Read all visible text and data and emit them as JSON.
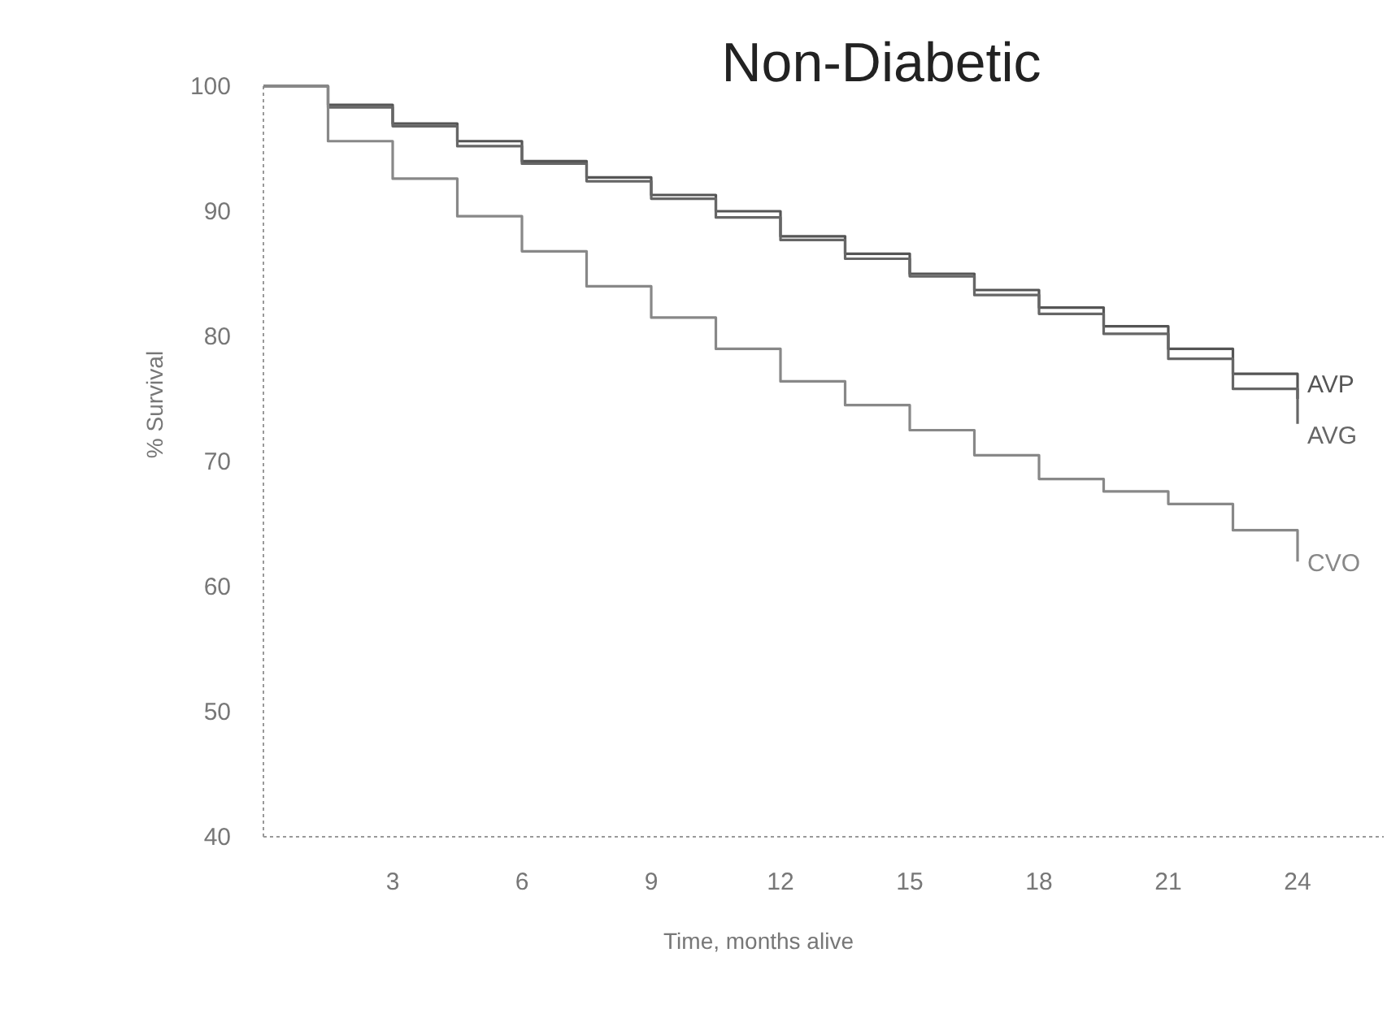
{
  "chart_data": {
    "type": "step",
    "title": "Non-Diabetic",
    "xlabel": "Time, months alive",
    "ylabel": "% Survival",
    "x": [
      0,
      1.5,
      3,
      4.5,
      6,
      7.5,
      9,
      10.5,
      12,
      13.5,
      15,
      16.5,
      18,
      19.5,
      21,
      22.5,
      24
    ],
    "series": [
      {
        "name": "AVP",
        "color": "#555555",
        "values": [
          100,
          98.5,
          97,
          95.6,
          94,
          92.7,
          91.3,
          90,
          88,
          86.6,
          85,
          83.7,
          82.3,
          80.8,
          79,
          77,
          75
        ]
      },
      {
        "name": "AVG",
        "color": "#666666",
        "values": [
          100,
          98.3,
          96.8,
          95.2,
          93.8,
          92.4,
          91,
          89.5,
          87.7,
          86.2,
          84.8,
          83.3,
          81.8,
          80.2,
          78.2,
          75.8,
          73
        ]
      },
      {
        "name": "CVO",
        "color": "#888888",
        "values": [
          100,
          95.6,
          92.6,
          89.6,
          86.8,
          84,
          81.5,
          79,
          76.4,
          74.5,
          72.5,
          70.5,
          68.6,
          67.6,
          66.6,
          64.5,
          62
        ]
      }
    ],
    "xlim": [
      0,
      26
    ],
    "xticks": [
      3,
      6,
      9,
      12,
      15,
      18,
      21,
      24
    ],
    "ylim": [
      40,
      100
    ],
    "yticks": [
      40,
      50,
      60,
      70,
      80,
      90,
      100
    ],
    "grid": false,
    "legend": false
  }
}
